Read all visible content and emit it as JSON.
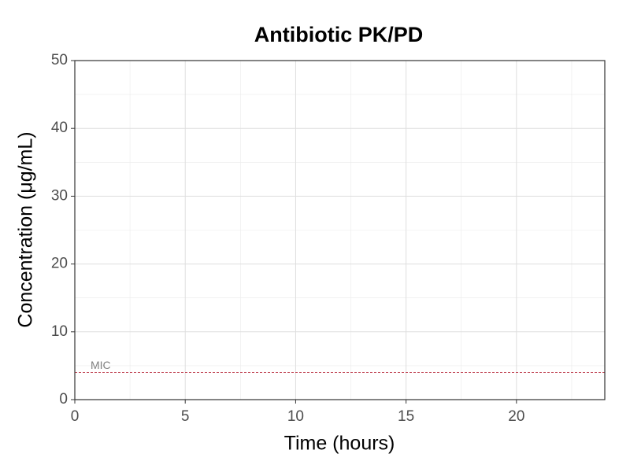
{
  "chart_data": {
    "type": "line",
    "title": "Antibiotic PK/PD",
    "x_label": "Time (hours)",
    "y_label": "Concentration (μg/mL)",
    "xlim": [
      0,
      24
    ],
    "xticks": [
      0,
      5,
      10,
      15,
      20
    ],
    "ylim": [
      0,
      50
    ],
    "yticks": [
      0,
      10,
      20,
      30,
      40,
      50
    ],
    "grid": true,
    "reference_lines": [
      {
        "label": "MIC",
        "value": 4,
        "color": "#b2182b",
        "dashed": true
      }
    ]
  }
}
